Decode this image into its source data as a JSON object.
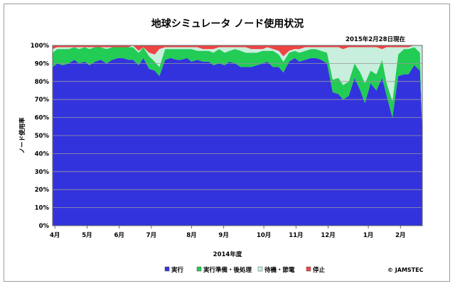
{
  "chart_data": {
    "type": "area",
    "stacked": true,
    "title": "地球シミュレータ ノード使用状況",
    "as_of": "2015年2月28日現在",
    "ylabel": "ノード使用率",
    "xlabel": "2014年度",
    "ylim": [
      0,
      100
    ],
    "yticks": [
      "0%",
      "10%",
      "20%",
      "30%",
      "40%",
      "50%",
      "60%",
      "70%",
      "80%",
      "90%",
      "100%"
    ],
    "grid": true,
    "legend_position": "bottom",
    "copyright": "© JAMSTEC",
    "month_ticks": [
      {
        "label": "4月",
        "x": 2
      },
      {
        "label": "5月",
        "x": 30
      },
      {
        "label": "6月",
        "x": 58
      },
      {
        "label": "7月",
        "x": 86
      },
      {
        "label": "8月",
        "x": 121
      },
      {
        "label": "9月",
        "x": 149
      },
      {
        "label": "10月",
        "x": 184
      },
      {
        "label": "11月",
        "x": 212
      },
      {
        "label": "12月",
        "x": 240
      },
      {
        "label": "1月",
        "x": 275
      },
      {
        "label": "2月",
        "x": 303
      }
    ],
    "x_range": [
      0,
      322
    ],
    "x": [
      0,
      4,
      9,
      14,
      19,
      23,
      28,
      32,
      37,
      42,
      47,
      52,
      57,
      61,
      66,
      70,
      75,
      79,
      84,
      89,
      93,
      98,
      103,
      108,
      112,
      117,
      121,
      126,
      131,
      136,
      140,
      145,
      150,
      154,
      159,
      164,
      168,
      173,
      178,
      183,
      187,
      192,
      197,
      201,
      206,
      211,
      215,
      220,
      225,
      229,
      234,
      239,
      244,
      249,
      253,
      258,
      263,
      268,
      272,
      277,
      282,
      287,
      291,
      296,
      301,
      306,
      310,
      315,
      320,
      322
    ],
    "series": [
      {
        "name": "実行",
        "color": "#3333dd",
        "values": [
          88,
          90,
          89,
          90,
          92,
          90,
          91,
          89,
          91,
          92,
          90,
          92,
          93,
          93,
          92,
          92,
          89,
          93,
          87,
          86,
          83,
          92,
          93,
          92,
          92,
          93,
          91,
          92,
          91,
          91,
          89,
          90,
          89,
          91,
          90,
          88,
          88,
          88,
          89,
          90,
          91,
          88,
          88,
          85,
          91,
          93,
          91,
          92,
          93,
          93,
          92,
          90,
          74,
          73,
          70,
          72,
          82,
          75,
          68,
          79,
          75,
          82,
          72,
          60,
          83,
          84,
          84,
          89,
          86,
          52
        ]
      },
      {
        "name": "実行準備・後処理",
        "color": "#22cc55",
        "values": [
          8,
          8,
          9,
          8,
          7,
          8,
          8,
          9,
          8,
          7,
          8,
          7,
          6,
          6,
          7,
          7,
          7,
          6,
          7,
          5,
          5,
          6,
          5,
          6,
          6,
          5,
          7,
          5,
          6,
          6,
          7,
          8,
          7,
          6,
          8,
          9,
          8,
          8,
          7,
          7,
          6,
          9,
          7,
          6,
          5,
          4,
          5,
          5,
          5,
          5,
          5,
          6,
          7,
          9,
          8,
          8,
          8,
          10,
          11,
          7,
          9,
          10,
          7,
          9,
          12,
          14,
          14,
          10,
          10,
          0
        ]
      },
      {
        "name": "待機・節電",
        "color": "#c8eedd",
        "values": [
          2,
          1,
          1,
          1,
          0,
          1,
          0,
          1,
          0,
          0,
          1,
          0,
          0,
          0,
          0,
          1,
          1,
          0,
          2,
          4,
          10,
          1,
          1,
          1,
          1,
          1,
          1,
          2,
          1,
          1,
          2,
          1,
          3,
          2,
          1,
          2,
          3,
          2,
          2,
          1,
          2,
          1,
          2,
          3,
          1,
          1,
          2,
          2,
          1,
          1,
          2,
          3,
          18,
          17,
          20,
          19,
          9,
          14,
          20,
          13,
          15,
          6,
          20,
          30,
          4,
          1,
          1,
          1,
          4,
          48
        ]
      },
      {
        "name": "停止",
        "color": "#ee4444",
        "values": [
          2,
          1,
          1,
          1,
          1,
          1,
          1,
          1,
          1,
          1,
          1,
          1,
          1,
          1,
          1,
          0,
          3,
          1,
          4,
          5,
          2,
          1,
          1,
          1,
          1,
          1,
          1,
          1,
          2,
          2,
          2,
          1,
          1,
          1,
          1,
          1,
          1,
          2,
          2,
          2,
          1,
          2,
          3,
          6,
          3,
          2,
          2,
          1,
          1,
          1,
          1,
          1,
          1,
          1,
          2,
          1,
          1,
          1,
          1,
          1,
          1,
          2,
          1,
          1,
          1,
          1,
          1,
          0,
          0,
          0
        ]
      }
    ]
  }
}
